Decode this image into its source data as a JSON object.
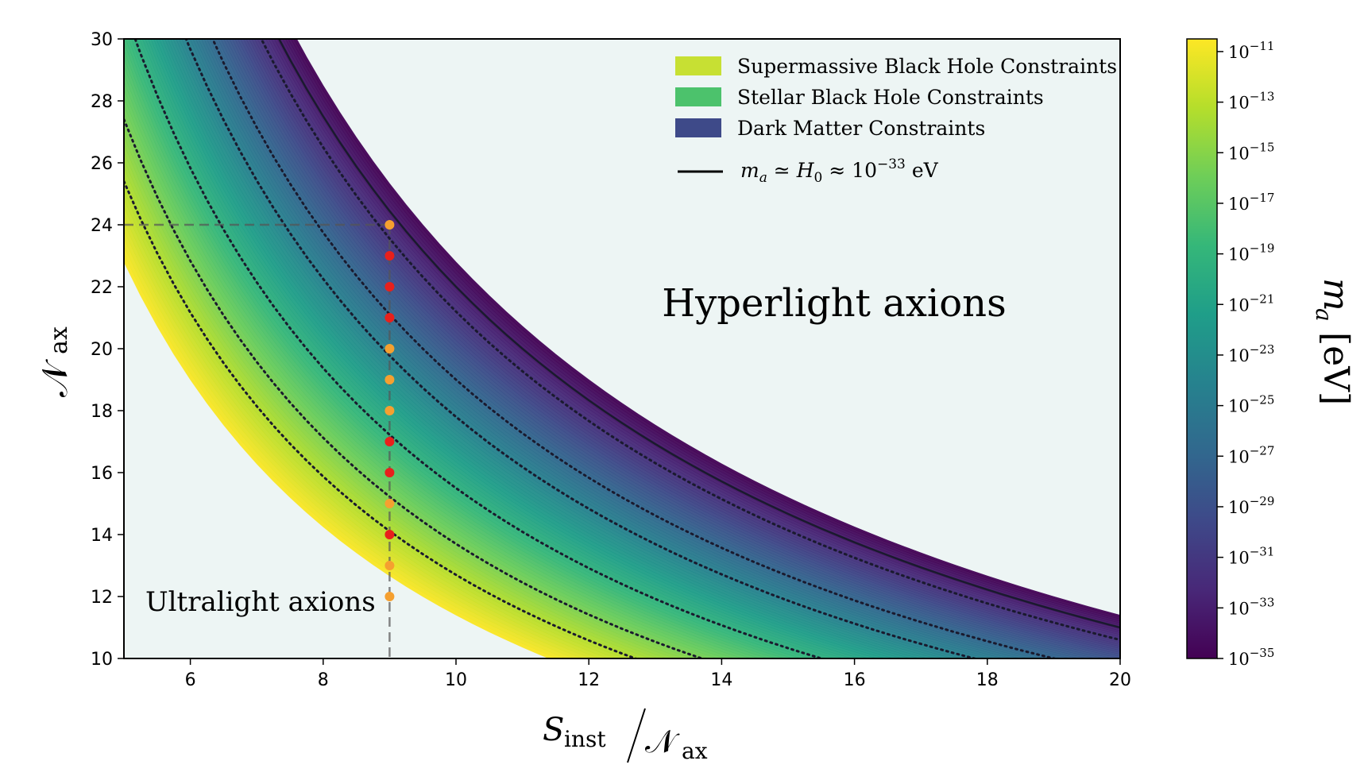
{
  "chart_data": {
    "type": "area",
    "xlabel": "S_inst / N_ax",
    "ylabel": "N_ax",
    "xlim": [
      5,
      20
    ],
    "ylim": [
      10,
      30
    ],
    "x_ticks": [
      6,
      8,
      10,
      12,
      14,
      16,
      18,
      20
    ],
    "y_ticks": [
      10,
      12,
      14,
      16,
      18,
      20,
      22,
      24,
      26,
      28,
      30
    ],
    "colorbar": {
      "label": "m_a [eV]",
      "scale": "log",
      "range_exp": [
        -35,
        -10.5
      ],
      "ticks_exp": [
        -11,
        -13,
        -15,
        -17,
        -19,
        -21,
        -23,
        -25,
        -27,
        -29,
        -31,
        -33,
        -35
      ],
      "tick_base": "10"
    },
    "band": {
      "curve_constant_lower": 114,
      "curve_constant_upper": 228,
      "note": "filled band between x*y = const curves, colored by m_a"
    },
    "dotted_contours_xy": [
      127,
      137,
      155,
      178,
      190,
      212
    ],
    "solid_contour_xy": [
      220
    ],
    "legend": {
      "position": "top-right",
      "entries": [
        {
          "label": "Supermassive Black Hole Constraints",
          "color": "#c7e033"
        },
        {
          "label": "Stellar Black Hole Constraints",
          "color": "#4cc26c"
        },
        {
          "label": "Dark Matter Constraints",
          "color": "#3e4a89"
        }
      ],
      "line_entry": {
        "label": "m_a ≃ H_0 ≈ 10^-33 eV",
        "color": "#000000"
      }
    },
    "annotations": {
      "hyperlight": "Hyperlight axions",
      "ultralight": "Ultralight axions"
    },
    "reference_lines": {
      "x": 9,
      "y": 24
    },
    "points": [
      {
        "x": 9,
        "y": 24,
        "color": "#f5a030"
      },
      {
        "x": 9,
        "y": 23,
        "color": "#e8201c"
      },
      {
        "x": 9,
        "y": 22,
        "color": "#e8201c"
      },
      {
        "x": 9,
        "y": 21,
        "color": "#e8201c"
      },
      {
        "x": 9,
        "y": 20,
        "color": "#f5a030"
      },
      {
        "x": 9,
        "y": 19,
        "color": "#f5a030"
      },
      {
        "x": 9,
        "y": 18,
        "color": "#f5a030"
      },
      {
        "x": 9,
        "y": 17,
        "color": "#e8201c"
      },
      {
        "x": 9,
        "y": 16,
        "color": "#e8201c"
      },
      {
        "x": 9,
        "y": 15,
        "color": "#f5a030"
      },
      {
        "x": 9,
        "y": 14,
        "color": "#e8201c"
      },
      {
        "x": 9,
        "y": 13,
        "color": "#f5a030"
      },
      {
        "x": 9,
        "y": 12,
        "color": "#f5a030"
      }
    ],
    "colors": {
      "background": "#edf5f4",
      "viridis": [
        "#440154",
        "#482878",
        "#3e4989",
        "#31688e",
        "#26828e",
        "#1f9e89",
        "#35b779",
        "#6ece58",
        "#b5de2b",
        "#fde725"
      ]
    }
  }
}
